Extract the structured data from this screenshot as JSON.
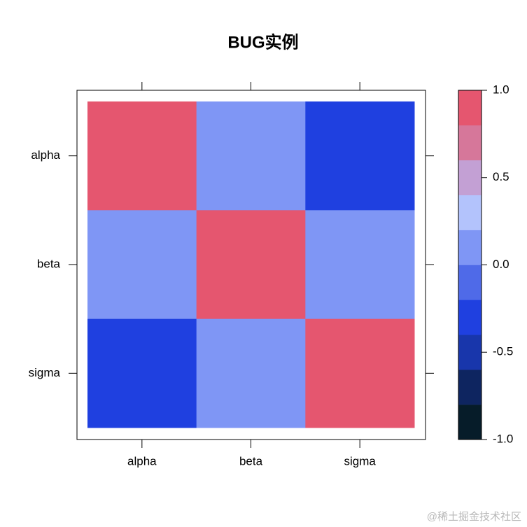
{
  "chart_data": {
    "type": "heatmap",
    "title": "BUG实例",
    "x": [
      "alpha",
      "beta",
      "sigma"
    ],
    "y": [
      "alpha",
      "beta",
      "sigma"
    ],
    "z": [
      [
        1.0,
        0.1,
        -0.3
      ],
      [
        0.1,
        1.0,
        0.1
      ],
      [
        -0.3,
        0.1,
        1.0
      ]
    ],
    "colorbar": {
      "breaks": [
        -1.0,
        -0.8,
        -0.6,
        -0.4,
        -0.2,
        0.0,
        0.2,
        0.4,
        0.6,
        0.8,
        1.0
      ],
      "colors": [
        "#061c29",
        "#0e2560",
        "#1836ab",
        "#1f40e0",
        "#4f6ae8",
        "#7f96f5",
        "#b3c3fc",
        "#c3a0d4",
        "#d6779a",
        "#e5566f"
      ],
      "lim": [
        -1.0,
        1.0
      ],
      "ticks": [
        {
          "value": -1.0,
          "label": "-1.0"
        },
        -0.5,
        {
          "value": 0.0,
          "label": "0.0"
        },
        0.5,
        {
          "value": 1.0,
          "label": "1.0"
        }
      ]
    }
  },
  "watermark": "@稀土掘金技术社区"
}
